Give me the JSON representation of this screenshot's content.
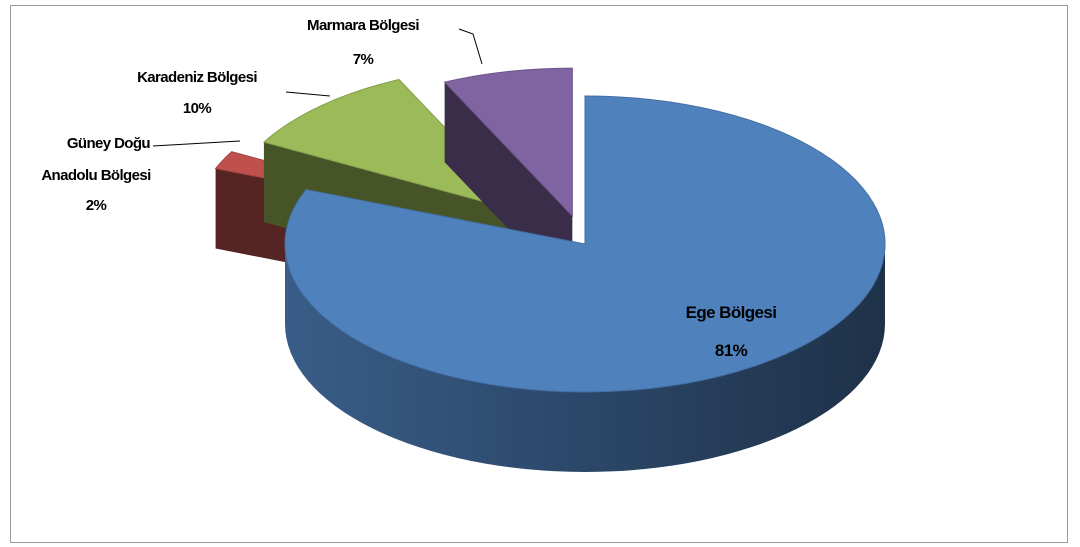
{
  "chart_data": {
    "type": "pie",
    "title": "",
    "three_d": true,
    "exploded": true,
    "legend": "none",
    "slices": [
      {
        "label": "Ege Bölgesi",
        "value": 81,
        "value_label": "81%",
        "color": "#4f81bd"
      },
      {
        "label": "Güney Doğu Anadolu Bölgesi",
        "label_lines": [
          "Güney Doğu",
          "Anadolu Bölgesi"
        ],
        "value": 2,
        "value_label": "2%",
        "color": "#c0504d"
      },
      {
        "label": "Karadeniz Bölgesi",
        "value": 10,
        "value_label": "10%",
        "color": "#9bbb59"
      },
      {
        "label": "Marmara Bölgesi",
        "value": 7,
        "value_label": "7%",
        "color": "#8064a2"
      }
    ]
  }
}
